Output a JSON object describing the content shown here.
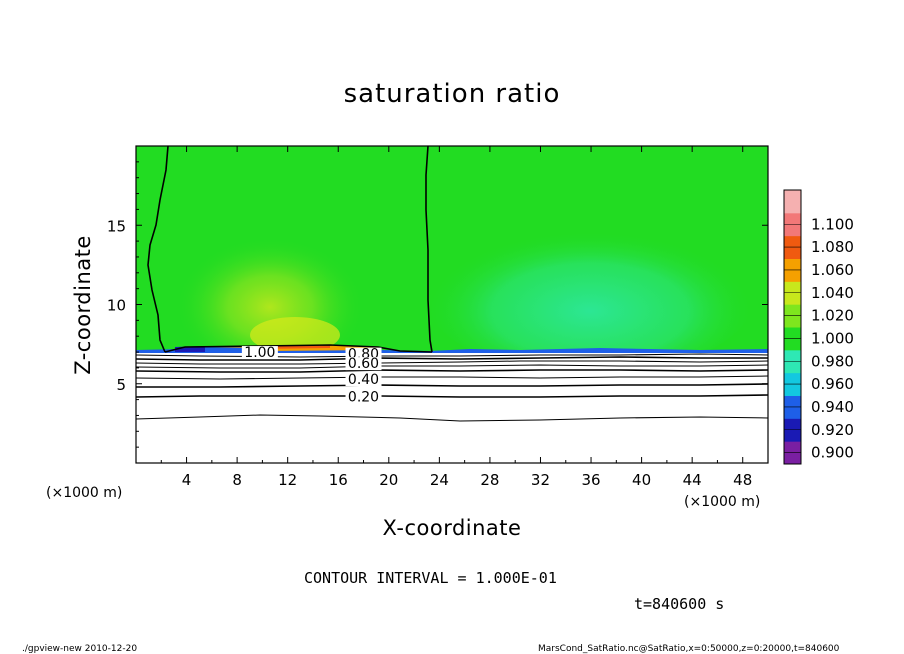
{
  "chart_data": {
    "type": "heatmap",
    "title": "saturation ratio",
    "xlabel": "X-coordinate",
    "ylabel": "Z-coordinate",
    "x_unit": "(×1000 m)",
    "y_unit": "(×1000 m)",
    "xlim": [
      0,
      50
    ],
    "ylim": [
      0,
      20
    ],
    "x_ticks": [
      4,
      8,
      12,
      16,
      20,
      24,
      28,
      32,
      36,
      40,
      44,
      48
    ],
    "y_ticks": [
      5,
      10,
      15
    ],
    "colorbar": {
      "levels": [
        0.9,
        0.92,
        0.94,
        0.96,
        0.98,
        1.0,
        1.02,
        1.04,
        1.06,
        1.08,
        1.1
      ],
      "labels": [
        "0.900",
        "0.920",
        "0.940",
        "0.960",
        "0.980",
        "1.000",
        "1.020",
        "1.040",
        "1.060",
        "1.080",
        "1.100"
      ],
      "colors": [
        "#7a1fa2",
        "#1a1ab4",
        "#1e5fe8",
        "#13c8e0",
        "#2ee8b4",
        "#22dc22",
        "#7ee61e",
        "#c8e81c",
        "#f5a000",
        "#f05a10",
        "#f27878",
        "#f5b0b0"
      ]
    },
    "contour_labels": [
      {
        "text": "1.00",
        "x": 9.8,
        "z": 7.0
      },
      {
        "text": "0.80",
        "x": 18.0,
        "z": 6.9
      },
      {
        "text": "0.60",
        "x": 18.0,
        "z": 6.3
      },
      {
        "text": "0.40",
        "x": 18.0,
        "z": 5.3
      },
      {
        "text": "0.20",
        "x": 18.0,
        "z": 4.2
      }
    ],
    "contour_interval": "CONTOUR INTERVAL = 1.000E-01",
    "time_label": "t=840600 s"
  },
  "footer": {
    "left": "./gpview-new  2010-12-20",
    "right": "MarsCond_SatRatio.nc@SatRatio,x=0:50000,z=0:20000,t=840600"
  }
}
